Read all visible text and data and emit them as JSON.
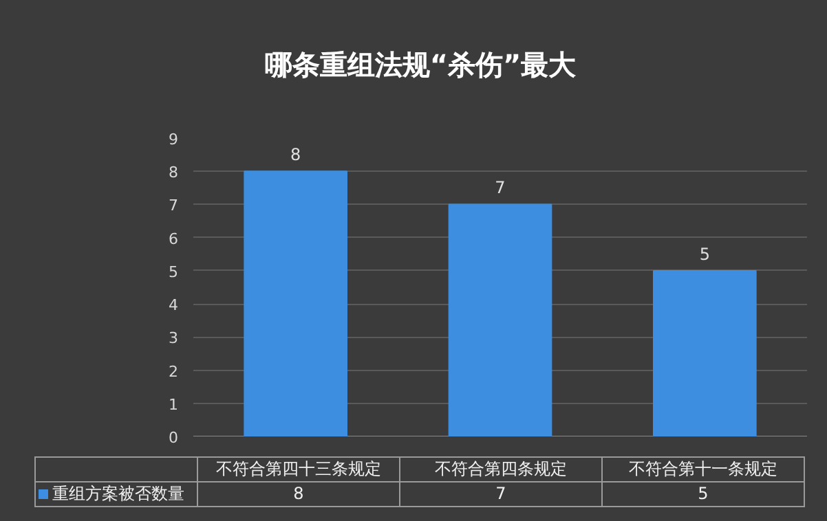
{
  "chart_data": {
    "type": "bar",
    "title": "哪条重组法规“杀伤”最大",
    "categories": [
      "不符合第四十三条规定",
      "不符合第四条规定",
      "不符合第十一条规定"
    ],
    "series": [
      {
        "name": "重组方案被否数量",
        "color": "#3d8ee0",
        "values": [
          8,
          7,
          5
        ]
      }
    ],
    "annotations": [
      {
        "text": "8",
        "x": "不符合第四十三条规定",
        "y": 8
      },
      {
        "text": "7",
        "x": "不符合第四条规定",
        "y": 7
      },
      {
        "text": "5",
        "x": "不符合第十一条规定",
        "y": 5
      }
    ],
    "ylim": [
      0,
      9
    ],
    "yticks": [
      0,
      1,
      2,
      3,
      4,
      5,
      6,
      7,
      8,
      9
    ],
    "grid": "y",
    "data_labels": true,
    "legend": "bottom"
  }
}
